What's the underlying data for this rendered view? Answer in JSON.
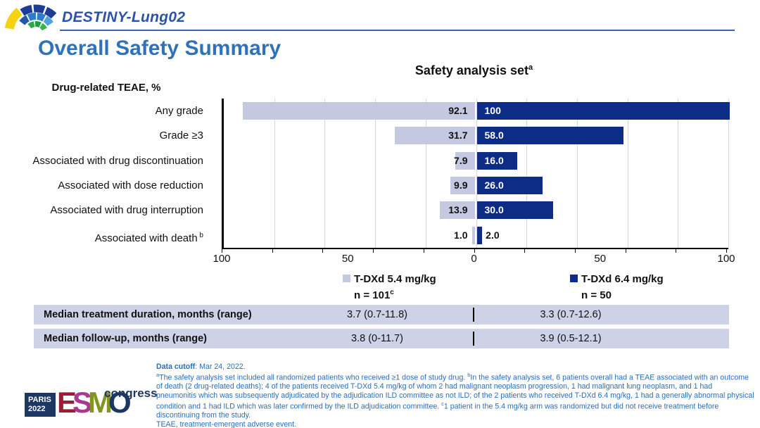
{
  "header": {
    "study_name": "DESTINY-Lung02"
  },
  "page_title": "Overall Safety Summary",
  "chart_data": {
    "type": "bar",
    "variant": "diverging-horizontal",
    "title": "Safety analysis set",
    "title_sup": "a",
    "row_axis_label": "Drug-related TEAE, %",
    "categories": [
      "Any grade",
      "Grade ≥3",
      "Associated with drug discontinuation",
      "Associated with dose reduction",
      "Associated with drug interruption",
      "Associated with death"
    ],
    "category_sups": [
      "",
      "",
      "",
      "",
      "",
      "b"
    ],
    "series": [
      {
        "name": "T-DXd 5.4 mg/kg",
        "n_label": "n = 101",
        "n_sup": "c",
        "side": "left",
        "color": "#c4c8e0",
        "values": [
          92.1,
          31.7,
          7.9,
          9.9,
          13.9,
          1.0
        ],
        "labels": [
          "92.1",
          "31.7",
          "7.9",
          "9.9",
          "13.9",
          "1.0"
        ]
      },
      {
        "name": "T-DXd 6.4 mg/kg",
        "n_label": "n = 50",
        "n_sup": "",
        "side": "right",
        "color": "#0d2c85",
        "values": [
          100,
          58.0,
          16.0,
          26.0,
          30.0,
          2.0
        ],
        "labels": [
          "100",
          "58.0",
          "16.0",
          "26.0",
          "30.0",
          "2.0"
        ]
      }
    ],
    "x_ticks": [
      "100",
      "50",
      "0",
      "50",
      "100"
    ],
    "xlim": [
      0,
      100
    ],
    "grid_step": 20,
    "legend_position": "bottom",
    "grid": true
  },
  "table": {
    "rows": [
      {
        "label": "Median treatment duration, months (range)",
        "col1": "3.7 (0.7-11.8)",
        "divider": "|",
        "col2": "3.3 (0.7-12.6)"
      },
      {
        "label": "Median follow-up, months (range)",
        "col1": "3.8 (0-11.7)",
        "divider": "|",
        "col2": "3.9 (0.5-12.1)"
      }
    ]
  },
  "footnotes": {
    "cutoff_bold": "Data cutoff",
    "cutoff_rest": ": Mar 24, 2022.",
    "note_a_sup": "a",
    "note_a": "The safety analysis set included all randomized patients who received ≥1 dose of study drug. ",
    "note_b_sup": "b",
    "note_b": "In the safety analysis set, 6 patients overall had a TEAE associated with an outcome of death (2 drug-related deaths); 4 of the patients received T-DXd 5.4 mg/kg of whom 2 had malignant neoplasm progression, 1 had malignant lung neoplasm, and 1 had pneumonitis which was subsequently adjudicated by the adjudication ILD committee as not ILD; of the 2 patients who received T-DXd 6.4 mg/kg, 1 had a generally abnormal physical condition and 1 had ILD which was later confirmed by the ILD adjudication committee. ",
    "note_c_sup": "c",
    "note_c": "1 patient in the 5.4 mg/kg arm was randomized but did not receive treatment before discontinuing from the study.",
    "abbrev": "TEAE, treatment-emergent adverse event."
  },
  "footer_logo": {
    "paris": "PARIS",
    "year": "2022",
    "letters": [
      "E",
      "S",
      "M",
      "O"
    ],
    "letter_colors": [
      "#9c1b35",
      "#a93a92",
      "#839324",
      "#1d3765"
    ],
    "congress": "congress"
  },
  "brand_colors": {
    "title_blue": "#2e72ba",
    "header_blue": "#2d52a8",
    "footnote_blue": "#2a6ebb",
    "bar_lavender": "#c4c8e0",
    "bar_navy": "#0d2c85",
    "table_row_bg": "#cdd2e6"
  }
}
